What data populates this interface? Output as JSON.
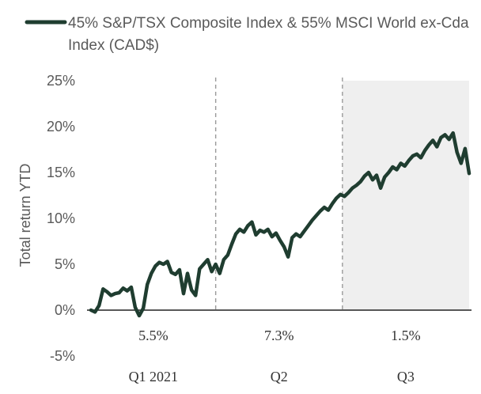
{
  "chart_data": {
    "type": "line",
    "title": "",
    "ylabel": "Total return YTD",
    "xlabel": "",
    "ylim": [
      -5,
      25
    ],
    "yticks": [
      25,
      20,
      15,
      10,
      5,
      0,
      -5
    ],
    "ytick_labels": [
      "25%",
      "20%",
      "15%",
      "10%",
      "5%",
      "0%",
      "-5%"
    ],
    "grid": false,
    "legend_position": "top-left",
    "series": [
      {
        "name": "45% S&P/TSX Composite Index & 55% MSCI World ex-Cda Index (CAD$)",
        "color": "#1f3d30",
        "x": [
          0,
          2,
          4,
          6,
          8,
          10,
          12,
          14,
          16,
          18,
          20,
          22,
          24,
          26,
          28,
          30,
          32,
          34,
          36,
          38,
          40,
          42,
          44,
          46,
          48,
          50,
          52,
          54,
          56,
          58,
          60,
          62,
          64,
          66,
          68,
          70,
          72,
          74,
          76,
          78,
          80,
          82,
          84,
          86,
          88,
          90,
          92,
          94,
          96,
          98,
          100,
          102,
          104,
          106,
          108,
          110,
          112,
          114,
          116,
          118,
          120,
          122,
          124,
          126,
          128,
          130,
          132,
          134,
          136,
          138,
          140,
          142,
          144,
          146,
          148,
          150,
          152,
          154,
          156,
          158,
          160,
          162,
          164,
          166,
          168,
          170,
          172,
          174,
          176,
          178,
          180,
          182,
          184,
          186,
          188
        ],
        "values": [
          0.0,
          -0.2,
          0.5,
          2.3,
          2.0,
          1.6,
          1.8,
          1.9,
          2.4,
          2.1,
          2.5,
          0.3,
          -0.6,
          0.2,
          2.8,
          4.0,
          4.8,
          5.2,
          5.0,
          5.3,
          4.1,
          3.9,
          4.4,
          1.8,
          4.0,
          2.2,
          1.6,
          4.5,
          5.0,
          5.5,
          4.2,
          5.0,
          4.0,
          5.5,
          6.0,
          7.2,
          8.3,
          8.8,
          8.5,
          9.2,
          9.6,
          8.2,
          8.7,
          8.5,
          8.8,
          8.0,
          8.4,
          7.6,
          6.9,
          5.8,
          7.9,
          8.3,
          8.0,
          8.6,
          9.2,
          9.8,
          10.3,
          10.8,
          11.2,
          10.9,
          11.6,
          12.2,
          12.6,
          12.4,
          12.8,
          13.3,
          13.6,
          14.0,
          14.6,
          15.0,
          14.2,
          14.7,
          13.3,
          14.5,
          15.0,
          15.6,
          15.3,
          16.0,
          15.7,
          16.3,
          16.8,
          17.0,
          16.6,
          17.4,
          18.0,
          18.5,
          17.8,
          18.8,
          19.1,
          18.6,
          19.3,
          17.2,
          16.0,
          17.6,
          14.9
        ],
        "line_width": 4.5
      }
    ],
    "quarters": [
      {
        "label": "Q1 2021",
        "return_label": "5.5%"
      },
      {
        "label": "Q2",
        "return_label": "7.3%"
      },
      {
        "label": "Q3",
        "return_label": "1.5%"
      }
    ],
    "quarter_boundaries": [
      62,
      125
    ],
    "x_domain": [
      0,
      188
    ],
    "shaded_quarter_index": 2,
    "shade_color": "#efefef",
    "divider_color": "#9a9a9a"
  }
}
